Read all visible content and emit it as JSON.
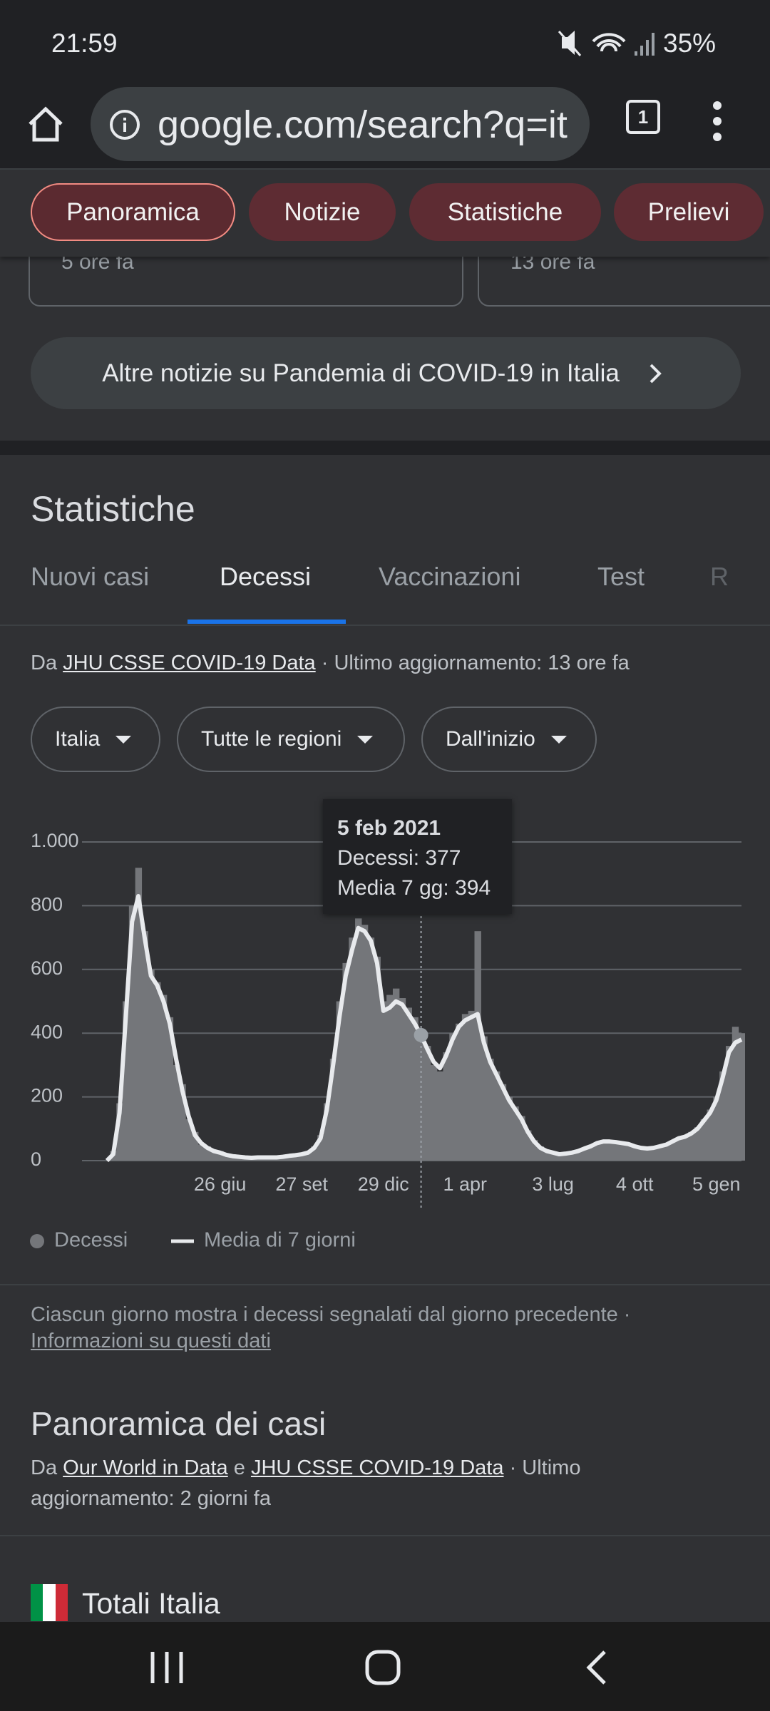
{
  "status_bar": {
    "time": "21:59",
    "battery": "35%"
  },
  "browser": {
    "url": "google.com/search?q=it",
    "tab_count": "1"
  },
  "chips": [
    "Panoramica",
    "Notizie",
    "Statistiche",
    "Prelievi"
  ],
  "news": {
    "cards": [
      "5 ore fa",
      "13 ore fa"
    ],
    "more_button": "Altre notizie su Pandemia di COVID-19 in Italia"
  },
  "stats": {
    "title": "Statistiche",
    "tabs": [
      "Nuovi casi",
      "Decessi",
      "Vaccinazioni",
      "Test",
      "R"
    ],
    "source": {
      "prefix": "Da",
      "link": "JHU CSSE COVID-19 Data",
      "suffix": "· Ultimo aggiornamento: 13 ore fa"
    },
    "filters": [
      "Italia",
      "Tutte le regioni",
      "Dall'inizio"
    ],
    "tooltip": {
      "date": "5 feb 2021",
      "lines": [
        "Decessi: 377",
        "Media 7 gg: 394"
      ]
    },
    "note": "Ciascun giorno mostra i decessi segnalati dal giorno precedente ·",
    "note_link": "Informazioni su questi dati"
  },
  "chart_data": {
    "type": "bar-line",
    "categories": [
      null,
      null,
      null,
      null,
      null,
      null,
      null,
      null,
      null,
      null,
      null,
      null,
      null,
      null,
      null,
      null,
      null,
      null,
      "26 giu",
      null,
      null,
      null,
      null,
      null,
      null,
      null,
      null,
      null,
      null,
      null,
      null,
      "27 set",
      null,
      null,
      null,
      null,
      null,
      null,
      null,
      null,
      null,
      null,
      null,
      null,
      "29 dic",
      null,
      null,
      null,
      null,
      null,
      null,
      null,
      null,
      null,
      null,
      null,
      null,
      "1 apr",
      null,
      null,
      null,
      null,
      null,
      null,
      null,
      null,
      null,
      null,
      null,
      null,
      null,
      "3 lug",
      null,
      null,
      null,
      null,
      null,
      null,
      null,
      null,
      null,
      null,
      null,
      null,
      "4 ott",
      null,
      null,
      null,
      null,
      null,
      null,
      null,
      null,
      null,
      null,
      null,
      null,
      "5 gen",
      null,
      null,
      null,
      null
    ],
    "series": [
      {
        "name": "Decessi",
        "color": "#74767a",
        "values": [
          0,
          30,
          180,
          500,
          800,
          919,
          720,
          600,
          560,
          520,
          450,
          300,
          240,
          130,
          90,
          50,
          45,
          28,
          30,
          15,
          20,
          8,
          12,
          7,
          11,
          10,
          9,
          12,
          14,
          13,
          20,
          18,
          28,
          45,
          80,
          180,
          320,
          500,
          620,
          700,
          760,
          740,
          700,
          640,
          500,
          520,
          540,
          510,
          480,
          450,
          377,
          360,
          300,
          280,
          340,
          400,
          430,
          460,
          470,
          720,
          390,
          320,
          280,
          240,
          200,
          170,
          140,
          95,
          65,
          45,
          32,
          27,
          22,
          24,
          28,
          32,
          40,
          48,
          58,
          65,
          62,
          60,
          56,
          54,
          48,
          42,
          40,
          42,
          48,
          55,
          62,
          72,
          78,
          90,
          105,
          130,
          160,
          200,
          280,
          360,
          420,
          400
        ]
      },
      {
        "name": "Media di 7 giorni",
        "color": "#e8eaed",
        "values": [
          0,
          20,
          150,
          450,
          750,
          830,
          700,
          580,
          550,
          500,
          430,
          320,
          220,
          140,
          80,
          55,
          40,
          30,
          25,
          18,
          14,
          12,
          10,
          9,
          10,
          10,
          10,
          10,
          12,
          15,
          17,
          20,
          25,
          40,
          70,
          160,
          300,
          450,
          580,
          660,
          730,
          720,
          690,
          620,
          470,
          480,
          500,
          490,
          460,
          430,
          394,
          350,
          310,
          290,
          330,
          380,
          420,
          440,
          450,
          460,
          370,
          310,
          270,
          230,
          190,
          160,
          130,
          90,
          60,
          40,
          30,
          25,
          20,
          22,
          25,
          30,
          38,
          45,
          55,
          60,
          60,
          58,
          55,
          52,
          45,
          40,
          38,
          40,
          45,
          50,
          60,
          70,
          75,
          85,
          100,
          125,
          150,
          190,
          260,
          340,
          370,
          380
        ]
      }
    ],
    "ylim": [
      0,
      1000
    ],
    "yticks": [
      0,
      200,
      400,
      600,
      800,
      {
        "value": 1000,
        "label": "1.000"
      }
    ],
    "grid": true
  },
  "overview": {
    "title": "Panoramica dei casi",
    "source": {
      "prefix": "Da",
      "link1": "Our World in Data",
      "joiner": "e",
      "link2": "JHU CSSE COVID-19 Data",
      "suffix": "· Ultimo aggiornamento: 2 giorni fa"
    },
    "totals_title": "Totali Italia"
  }
}
